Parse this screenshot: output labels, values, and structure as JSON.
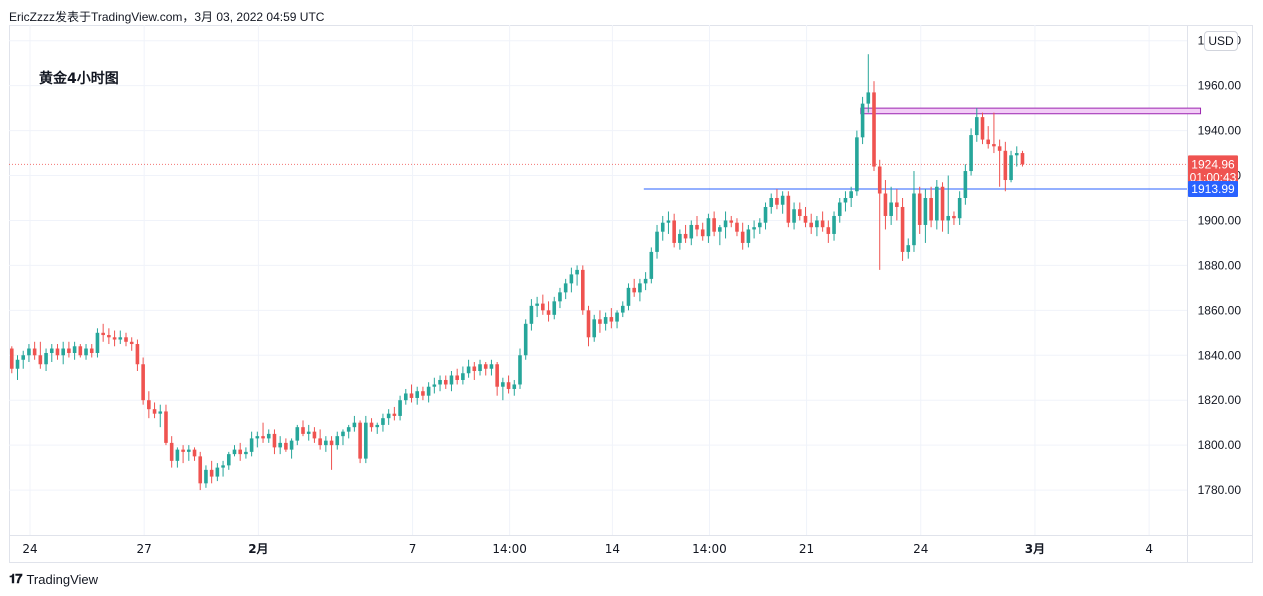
{
  "header": {
    "text": "EricZzzz发表于TradingView.com，3月 03, 2022 04:59 UTC"
  },
  "title": "黄金4小时图",
  "currency": "USD",
  "footer": {
    "brand": "TradingView",
    "logo_icon": "tradingview-logo-icon"
  },
  "colors": {
    "up": "#26a69a",
    "down": "#ef5350",
    "hline": "#2962ff",
    "zone_fill": "#f2cdf6",
    "zone_stroke": "#9c27b0",
    "price_line": "#ef5350"
  },
  "chart_data": {
    "type": "candlestick",
    "ylim": [
      1760,
      1987
    ],
    "y_ticks": [
      1780,
      1800,
      1820,
      1840,
      1860,
      1880,
      1900,
      1920,
      1940,
      1960,
      1980
    ],
    "y_tick_labels": [
      "1780.00",
      "1800.00",
      "1820.00",
      "1840.00",
      "1860.00",
      "1880.00",
      "1900.00",
      "1920.00",
      "1940.00",
      "1960.00",
      "1980.00"
    ],
    "x_ticks": [
      {
        "label": "24",
        "bar": 3.5
      },
      {
        "label": "27",
        "bar": 23.5
      },
      {
        "label": "2月",
        "bar": 43.5,
        "bold": true
      },
      {
        "label": "7",
        "bar": 70.5
      },
      {
        "label": "14:00",
        "bar": 87.5
      },
      {
        "label": "14",
        "bar": 105.5
      },
      {
        "label": "14:00",
        "bar": 122.5
      },
      {
        "label": "21",
        "bar": 139.5
      },
      {
        "label": "24",
        "bar": 159.5
      },
      {
        "label": "3月",
        "bar": 179.5,
        "bold": true
      },
      {
        "label": "4",
        "bar": 199.5
      }
    ],
    "current_price": {
      "value": 1924.96,
      "label": "1924.96",
      "countdown": "01:00:43"
    },
    "horizontal_line": {
      "value": 1913.99,
      "label": "1913.99",
      "from_bar": 111
    },
    "zone": {
      "top": 1950,
      "bottom": 1947.5,
      "from_bar": 149,
      "to_bar": 208.5
    },
    "candles": [
      [
        1843,
        1844,
        1832,
        1834
      ],
      [
        1834,
        1840,
        1829,
        1838
      ],
      [
        1838,
        1842,
        1834,
        1840
      ],
      [
        1840,
        1845,
        1837,
        1843
      ],
      [
        1843,
        1846,
        1838,
        1840
      ],
      [
        1840,
        1846,
        1834,
        1836
      ],
      [
        1836,
        1843,
        1833,
        1841
      ],
      [
        1841,
        1845,
        1837,
        1843
      ],
      [
        1843,
        1845,
        1838,
        1840
      ],
      [
        1840,
        1846,
        1836,
        1843
      ],
      [
        1843,
        1846,
        1839,
        1841
      ],
      [
        1841,
        1846,
        1838,
        1844
      ],
      [
        1844,
        1845,
        1839,
        1840
      ],
      [
        1840,
        1845,
        1838,
        1843
      ],
      [
        1843,
        1845,
        1839,
        1841
      ],
      [
        1841,
        1852,
        1839,
        1850
      ],
      [
        1850,
        1854,
        1846,
        1849
      ],
      [
        1849,
        1852,
        1845,
        1848
      ],
      [
        1848,
        1851,
        1844,
        1847
      ],
      [
        1847,
        1851,
        1845,
        1848
      ],
      [
        1848,
        1850,
        1844,
        1846
      ],
      [
        1846,
        1848,
        1842,
        1845
      ],
      [
        1845,
        1847,
        1833,
        1836
      ],
      [
        1836,
        1839,
        1818,
        1820
      ],
      [
        1820,
        1824,
        1812,
        1816
      ],
      [
        1816,
        1819,
        1812,
        1814
      ],
      [
        1814,
        1818,
        1808,
        1815
      ],
      [
        1815,
        1818,
        1800,
        1801
      ],
      [
        1801,
        1804,
        1790,
        1793
      ],
      [
        1793,
        1799,
        1790,
        1798
      ],
      [
        1798,
        1800,
        1792,
        1797
      ],
      [
        1797,
        1800,
        1793,
        1798
      ],
      [
        1798,
        1799,
        1793,
        1795
      ],
      [
        1795,
        1797,
        1780,
        1783
      ],
      [
        1783,
        1791,
        1781,
        1789
      ],
      [
        1789,
        1793,
        1783,
        1786
      ],
      [
        1786,
        1792,
        1784,
        1790
      ],
      [
        1790,
        1793,
        1786,
        1791
      ],
      [
        1791,
        1797,
        1789,
        1796
      ],
      [
        1796,
        1800,
        1795,
        1798
      ],
      [
        1798,
        1801,
        1793,
        1796
      ],
      [
        1796,
        1799,
        1794,
        1797
      ],
      [
        1797,
        1806,
        1795,
        1803
      ],
      [
        1803,
        1806,
        1799,
        1804
      ],
      [
        1804,
        1810,
        1801,
        1803
      ],
      [
        1803,
        1807,
        1801,
        1805
      ],
      [
        1805,
        1807,
        1796,
        1799
      ],
      [
        1799,
        1804,
        1796,
        1801
      ],
      [
        1801,
        1803,
        1797,
        1798
      ],
      [
        1798,
        1803,
        1794,
        1802
      ],
      [
        1802,
        1809,
        1800,
        1808
      ],
      [
        1808,
        1811,
        1804,
        1805
      ],
      [
        1805,
        1809,
        1802,
        1806
      ],
      [
        1806,
        1808,
        1801,
        1803
      ],
      [
        1803,
        1807,
        1798,
        1800
      ],
      [
        1800,
        1804,
        1797,
        1802
      ],
      [
        1802,
        1804,
        1789,
        1800
      ],
      [
        1800,
        1806,
        1798,
        1804
      ],
      [
        1804,
        1807,
        1800,
        1806
      ],
      [
        1806,
        1809,
        1803,
        1808
      ],
      [
        1808,
        1813,
        1806,
        1810
      ],
      [
        1810,
        1811,
        1792,
        1794
      ],
      [
        1794,
        1813,
        1792,
        1810
      ],
      [
        1810,
        1812,
        1806,
        1808
      ],
      [
        1808,
        1810,
        1805,
        1809
      ],
      [
        1809,
        1814,
        1806,
        1812
      ],
      [
        1812,
        1816,
        1809,
        1814
      ],
      [
        1814,
        1817,
        1811,
        1813
      ],
      [
        1813,
        1822,
        1811,
        1820
      ],
      [
        1820,
        1825,
        1818,
        1823
      ],
      [
        1823,
        1827,
        1819,
        1821
      ],
      [
        1821,
        1826,
        1818,
        1824
      ],
      [
        1824,
        1826,
        1820,
        1822
      ],
      [
        1822,
        1828,
        1819,
        1826
      ],
      [
        1826,
        1830,
        1823,
        1827
      ],
      [
        1827,
        1831,
        1824,
        1829
      ],
      [
        1829,
        1831,
        1825,
        1827
      ],
      [
        1827,
        1833,
        1824,
        1831
      ],
      [
        1831,
        1834,
        1827,
        1829
      ],
      [
        1829,
        1835,
        1827,
        1832
      ],
      [
        1832,
        1838,
        1830,
        1835
      ],
      [
        1835,
        1837,
        1829,
        1833
      ],
      [
        1833,
        1838,
        1831,
        1836
      ],
      [
        1836,
        1837,
        1831,
        1834
      ],
      [
        1834,
        1838,
        1831,
        1836
      ],
      [
        1836,
        1837,
        1822,
        1826
      ],
      [
        1826,
        1830,
        1820,
        1828
      ],
      [
        1828,
        1831,
        1823,
        1825
      ],
      [
        1825,
        1829,
        1822,
        1827
      ],
      [
        1827,
        1843,
        1825,
        1840
      ],
      [
        1840,
        1856,
        1838,
        1854
      ],
      [
        1854,
        1865,
        1851,
        1862
      ],
      [
        1862,
        1866,
        1857,
        1863
      ],
      [
        1863,
        1867,
        1858,
        1860
      ],
      [
        1860,
        1864,
        1855,
        1858
      ],
      [
        1858,
        1866,
        1856,
        1864
      ],
      [
        1864,
        1870,
        1861,
        1868
      ],
      [
        1868,
        1874,
        1865,
        1872
      ],
      [
        1872,
        1879,
        1868,
        1876
      ],
      [
        1876,
        1880,
        1871,
        1878
      ],
      [
        1878,
        1880,
        1858,
        1860
      ],
      [
        1860,
        1862,
        1844,
        1848
      ],
      [
        1848,
        1858,
        1846,
        1856
      ],
      [
        1856,
        1860,
        1850,
        1854
      ],
      [
        1854,
        1859,
        1851,
        1857
      ],
      [
        1857,
        1861,
        1852,
        1855
      ],
      [
        1855,
        1860,
        1852,
        1859
      ],
      [
        1859,
        1864,
        1857,
        1862
      ],
      [
        1862,
        1872,
        1860,
        1870
      ],
      [
        1870,
        1874,
        1866,
        1868
      ],
      [
        1868,
        1874,
        1864,
        1872
      ],
      [
        1872,
        1877,
        1869,
        1874
      ],
      [
        1874,
        1888,
        1872,
        1886
      ],
      [
        1886,
        1898,
        1883,
        1895
      ],
      [
        1895,
        1902,
        1891,
        1899
      ],
      [
        1899,
        1904,
        1894,
        1900
      ],
      [
        1900,
        1903,
        1888,
        1890
      ],
      [
        1890,
        1896,
        1887,
        1894
      ],
      [
        1894,
        1898,
        1890,
        1892
      ],
      [
        1892,
        1900,
        1889,
        1898
      ],
      [
        1898,
        1902,
        1893,
        1896
      ],
      [
        1896,
        1899,
        1891,
        1893
      ],
      [
        1893,
        1903,
        1890,
        1901
      ],
      [
        1901,
        1904,
        1893,
        1895
      ],
      [
        1895,
        1898,
        1889,
        1897
      ],
      [
        1897,
        1904,
        1892,
        1900
      ],
      [
        1900,
        1902,
        1897,
        1899
      ],
      [
        1899,
        1901,
        1893,
        1895
      ],
      [
        1895,
        1899,
        1887,
        1890
      ],
      [
        1890,
        1898,
        1888,
        1896
      ],
      [
        1896,
        1900,
        1892,
        1897
      ],
      [
        1897,
        1901,
        1894,
        1899
      ],
      [
        1899,
        1908,
        1896,
        1906
      ],
      [
        1906,
        1912,
        1903,
        1910
      ],
      [
        1910,
        1914,
        1905,
        1907
      ],
      [
        1907,
        1913,
        1903,
        1911
      ],
      [
        1911,
        1913,
        1897,
        1899
      ],
      [
        1899,
        1908,
        1896,
        1905
      ],
      [
        1905,
        1908,
        1900,
        1902
      ],
      [
        1902,
        1906,
        1897,
        1899
      ],
      [
        1899,
        1903,
        1894,
        1897
      ],
      [
        1897,
        1902,
        1893,
        1900
      ],
      [
        1900,
        1904,
        1895,
        1897
      ],
      [
        1897,
        1900,
        1890,
        1894
      ],
      [
        1894,
        1904,
        1891,
        1902
      ],
      [
        1902,
        1910,
        1899,
        1908
      ],
      [
        1908,
        1913,
        1904,
        1910
      ],
      [
        1910,
        1915,
        1906,
        1913
      ],
      [
        1913,
        1940,
        1911,
        1937
      ],
      [
        1937,
        1955,
        1934,
        1952
      ],
      [
        1952,
        1974,
        1948,
        1957
      ],
      [
        1957,
        1962,
        1922,
        1924
      ],
      [
        1924,
        1927,
        1878,
        1912
      ],
      [
        1912,
        1918,
        1896,
        1902
      ],
      [
        1902,
        1915,
        1898,
        1908
      ],
      [
        1908,
        1914,
        1900,
        1906
      ],
      [
        1906,
        1910,
        1882,
        1886
      ],
      [
        1886,
        1892,
        1883,
        1889
      ],
      [
        1889,
        1922,
        1886,
        1912
      ],
      [
        1912,
        1915,
        1894,
        1898
      ],
      [
        1898,
        1914,
        1890,
        1910
      ],
      [
        1910,
        1915,
        1897,
        1900
      ],
      [
        1900,
        1918,
        1896,
        1915
      ],
      [
        1915,
        1917,
        1895,
        1900
      ],
      [
        1900,
        1920,
        1894,
        1902
      ],
      [
        1902,
        1904,
        1898,
        1901
      ],
      [
        1901,
        1913,
        1898,
        1910
      ],
      [
        1910,
        1925,
        1907,
        1922
      ],
      [
        1922,
        1941,
        1920,
        1938
      ],
      [
        1938,
        1950,
        1935,
        1946
      ],
      [
        1946,
        1948,
        1934,
        1936
      ],
      [
        1936,
        1942,
        1932,
        1934
      ],
      [
        1934,
        1948,
        1930,
        1933
      ],
      [
        1933,
        1936,
        1915,
        1931
      ],
      [
        1931,
        1935,
        1913,
        1918
      ],
      [
        1918,
        1931,
        1917,
        1929
      ],
      [
        1929,
        1933,
        1924,
        1930
      ],
      [
        1930,
        1931,
        1924,
        1925
      ]
    ]
  }
}
